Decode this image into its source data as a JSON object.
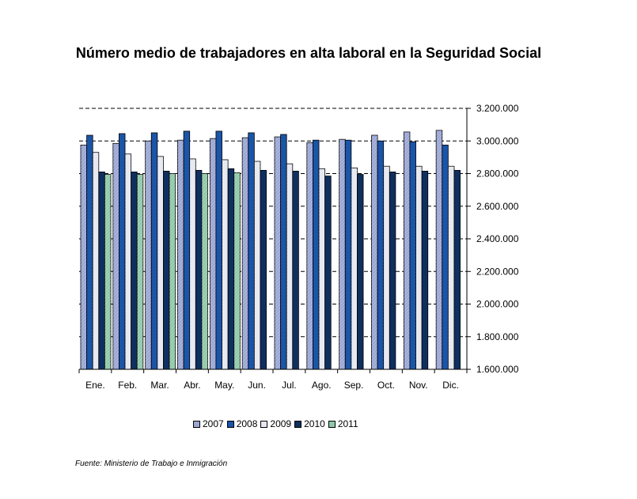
{
  "title": "Número medio de trabajadores en alta laboral en la Seguridad Social",
  "source": "Fuente: Ministerio de Trabajo e Inmigración",
  "chart_data": {
    "type": "bar",
    "categories": [
      "Ene.",
      "Feb.",
      "Mar.",
      "Abr.",
      "May.",
      "Jun.",
      "Jul.",
      "Ago.",
      "Sep.",
      "Oct.",
      "Nov.",
      "Dic."
    ],
    "ylim": [
      1600000,
      3200000
    ],
    "yticks": [
      1600000,
      1800000,
      2000000,
      2200000,
      2400000,
      2600000,
      2800000,
      3000000,
      3200000
    ],
    "ytick_labels": [
      "1.600.000",
      "1.800.000",
      "2.000.000",
      "2.200.000",
      "2.400.000",
      "2.600.000",
      "2.800.000",
      "3.000.000",
      "3.200.000"
    ],
    "y_axis_side": "right",
    "grid": "horizontal dashed",
    "legend_position": "bottom",
    "series": [
      {
        "name": "2007",
        "color": "#9aa6d4",
        "pattern": "hatch",
        "values": [
          2975000,
          2985000,
          3000000,
          3005000,
          3015000,
          3020000,
          3025000,
          2990000,
          3010000,
          3035000,
          3055000,
          3065000
        ]
      },
      {
        "name": "2008",
        "color": "#1a55a8",
        "pattern": "solid",
        "values": [
          3035000,
          3045000,
          3050000,
          3060000,
          3060000,
          3050000,
          3040000,
          3005000,
          3005000,
          3000000,
          2995000,
          2975000
        ]
      },
      {
        "name": "2009",
        "color": "#e6e8f0",
        "pattern": "hatch",
        "values": [
          2930000,
          2920000,
          2905000,
          2890000,
          2885000,
          2875000,
          2860000,
          2830000,
          2835000,
          2845000,
          2845000,
          2845000
        ]
      },
      {
        "name": "2010",
        "color": "#0f2f5f",
        "pattern": "solid",
        "values": [
          2810000,
          2810000,
          2815000,
          2820000,
          2830000,
          2820000,
          2815000,
          2785000,
          2795000,
          2810000,
          2815000,
          2820000
        ]
      },
      {
        "name": "2011",
        "color": "#8fc8a8",
        "pattern": "hatch",
        "values": [
          2795000,
          2795000,
          2800000,
          2800000,
          2805000,
          null,
          null,
          null,
          null,
          null,
          null,
          null
        ]
      }
    ]
  }
}
